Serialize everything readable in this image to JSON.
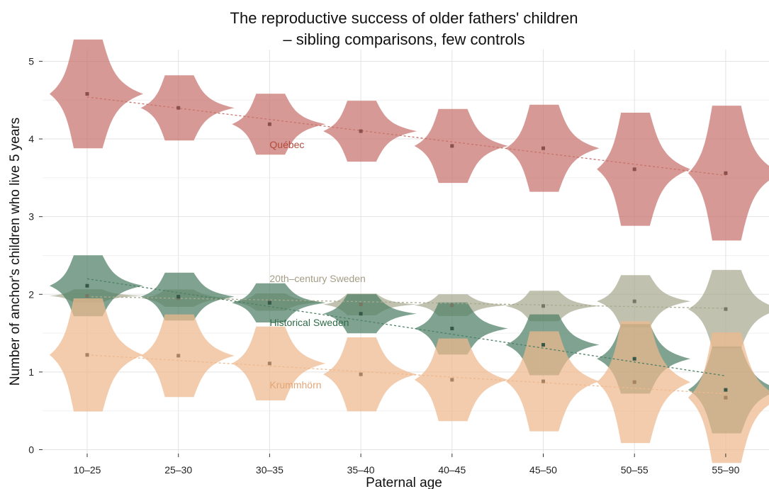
{
  "chart_data": {
    "type": "violin",
    "title": [
      "The reproductive success of older fathers' children",
      "– sibling comparisons, few controls"
    ],
    "xlabel": "Paternal age",
    "ylabel": "Number of anchor's children who live 5 years",
    "categories": [
      "10–25",
      "25–30",
      "30–35",
      "35–40",
      "40–45",
      "45–50",
      "50–55",
      "55–90"
    ],
    "ylim": [
      -0.05,
      5.15
    ],
    "yticks": [
      0,
      1,
      2,
      3,
      4,
      5
    ],
    "grid": true,
    "series": [
      {
        "name": "Québec",
        "color": "#c7726c",
        "means": [
          4.58,
          4.4,
          4.19,
          4.1,
          3.91,
          3.88,
          3.61,
          3.56
        ],
        "spread": [
          0.25,
          0.15,
          0.14,
          0.14,
          0.17,
          0.2,
          0.26,
          0.31
        ],
        "trend": [
          4.54,
          3.53
        ]
      },
      {
        "name": "20th–century Sweden",
        "color": "#a8aa90",
        "means": [
          1.98,
          1.95,
          1.9,
          1.87,
          1.86,
          1.85,
          1.91,
          1.81
        ],
        "spread": [
          0.03,
          0.04,
          0.04,
          0.05,
          0.05,
          0.07,
          0.12,
          0.18
        ],
        "trend": [
          1.97,
          1.82
        ]
      },
      {
        "name": "Historical Sweden",
        "color": "#4d7f65",
        "means": [
          2.11,
          1.97,
          1.89,
          1.75,
          1.56,
          1.35,
          1.17,
          0.77
        ],
        "spread": [
          0.14,
          0.11,
          0.09,
          0.09,
          0.12,
          0.14,
          0.16,
          0.2
        ],
        "trend": [
          2.2,
          0.95
        ]
      },
      {
        "name": "Krummhörn",
        "color": "#eeb98e",
        "means": [
          1.22,
          1.21,
          1.11,
          0.97,
          0.9,
          0.88,
          0.87,
          0.67
        ],
        "spread": [
          0.26,
          0.19,
          0.17,
          0.17,
          0.19,
          0.23,
          0.28,
          0.3
        ],
        "trend": [
          1.22,
          0.72
        ]
      }
    ],
    "annotations": [
      {
        "text": "Québec",
        "color": "#b34a3c",
        "x_index": 2,
        "y": 3.88
      },
      {
        "text": "20th–century Sweden",
        "color": "#a49d85",
        "x_index": 2,
        "y": 2.16
      },
      {
        "text": "Historical Sweden",
        "color": "#2e6b48",
        "x_index": 2,
        "y": 1.59
      },
      {
        "text": "Krummhörn",
        "color": "#e2a574",
        "x_index": 2,
        "y": 0.79
      }
    ]
  }
}
